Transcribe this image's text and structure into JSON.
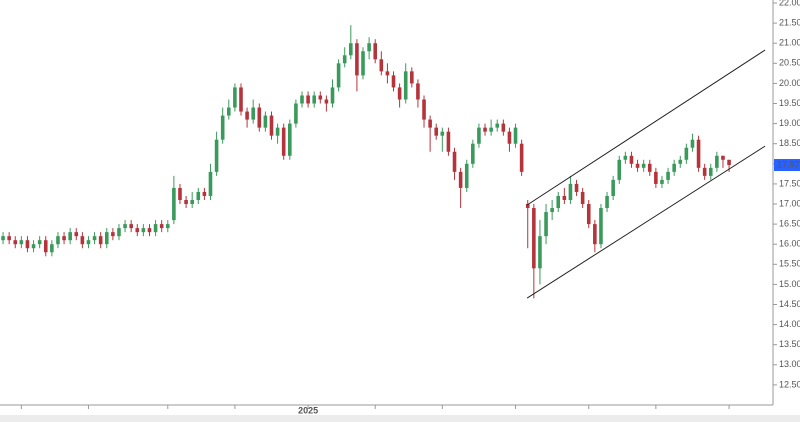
{
  "chart_data": {
    "type": "candlestick",
    "up_color": "#3a9a5b",
    "down_color": "#b5343c",
    "last_price_color": "#2962ff",
    "open": [
      16.1,
      16.2,
      16.1,
      16.0,
      16.1,
      15.9,
      16.0,
      16.1,
      15.8,
      16.0,
      16.2,
      16.1,
      16.3,
      16.2,
      16.0,
      16.1,
      16.2,
      16.0,
      16.3,
      16.2,
      16.4,
      16.5,
      16.4,
      16.3,
      16.4,
      16.3,
      16.5,
      16.4,
      16.6,
      17.4,
      17.1,
      17.0,
      17.1,
      17.3,
      17.2,
      17.8,
      18.6,
      19.2,
      19.4,
      19.9,
      19.3,
      19.1,
      19.4,
      18.9,
      19.2,
      18.7,
      18.9,
      18.2,
      19.0,
      19.5,
      19.7,
      19.5,
      19.7,
      19.6,
      19.5,
      19.9,
      20.5,
      20.7,
      21.0,
      20.2,
      20.8,
      21.0,
      20.6,
      20.3,
      20.2,
      19.9,
      19.6,
      20.3,
      20.0,
      19.6,
      19.1,
      18.9,
      18.7,
      18.8,
      18.3,
      17.8,
      17.4,
      18.0,
      18.5,
      18.9,
      18.8,
      18.9,
      19.0,
      18.8,
      18.5,
      18.5,
      17.0,
      16.9,
      15.4,
      16.2,
      16.8,
      16.9,
      17.2,
      17.1,
      17.5,
      17.3,
      17.0,
      16.5,
      16.0,
      16.9,
      17.2,
      17.6,
      18.1,
      18.2,
      18.0,
      17.9,
      18.0,
      17.8,
      17.5,
      17.6,
      17.8,
      18.0,
      18.1,
      18.4,
      18.6,
      17.9,
      17.7,
      17.9,
      18.2,
      18.1
    ],
    "high": [
      16.3,
      16.3,
      16.2,
      16.2,
      16.2,
      16.1,
      16.2,
      16.2,
      16.1,
      16.3,
      16.3,
      16.4,
      16.4,
      16.3,
      16.2,
      16.3,
      16.3,
      16.4,
      16.4,
      16.5,
      16.6,
      16.6,
      16.5,
      16.5,
      16.5,
      16.6,
      16.6,
      16.6,
      17.7,
      17.5,
      17.2,
      17.3,
      17.4,
      17.4,
      18.0,
      18.8,
      19.4,
      19.6,
      20.0,
      20.0,
      19.4,
      19.6,
      19.5,
      19.3,
      19.3,
      19.0,
      19.0,
      19.1,
      19.6,
      19.8,
      19.8,
      19.8,
      19.8,
      19.7,
      20.1,
      20.6,
      20.9,
      21.45,
      21.1,
      20.9,
      21.15,
      21.1,
      20.8,
      20.5,
      20.3,
      20.0,
      20.5,
      20.4,
      20.1,
      19.7,
      19.2,
      19.0,
      18.9,
      18.9,
      18.4,
      17.9,
      18.1,
      18.6,
      19.0,
      19.0,
      19.1,
      19.1,
      19.1,
      18.9,
      19.0,
      18.6,
      17.1,
      17.0,
      16.6,
      17.0,
      17.1,
      17.3,
      17.4,
      17.7,
      17.6,
      17.4,
      17.1,
      16.6,
      17.0,
      17.3,
      17.7,
      18.2,
      18.3,
      18.3,
      18.1,
      18.1,
      18.1,
      17.9,
      17.7,
      17.9,
      18.1,
      18.2,
      18.5,
      18.75,
      18.7,
      18.0,
      18.0,
      18.3,
      18.2,
      18.1
    ],
    "low": [
      16.0,
      16.0,
      15.9,
      15.9,
      15.8,
      15.8,
      15.9,
      15.7,
      15.7,
      15.9,
      16.0,
      16.0,
      16.1,
      15.9,
      15.9,
      16.0,
      15.9,
      15.9,
      16.1,
      16.1,
      16.3,
      16.3,
      16.2,
      16.2,
      16.2,
      16.2,
      16.3,
      16.3,
      16.5,
      17.0,
      16.9,
      16.9,
      17.0,
      17.1,
      17.1,
      17.7,
      18.5,
      19.1,
      19.3,
      19.2,
      18.9,
      19.0,
      18.8,
      18.8,
      18.6,
      18.5,
      18.1,
      18.1,
      18.9,
      19.4,
      19.4,
      19.4,
      19.5,
      19.3,
      19.4,
      19.8,
      20.4,
      20.6,
      19.8,
      20.1,
      20.6,
      20.5,
      20.2,
      20.0,
      19.8,
      19.4,
      19.5,
      19.9,
      19.4,
      18.9,
      18.3,
      18.6,
      18.3,
      18.2,
      17.6,
      16.9,
      17.3,
      17.9,
      18.4,
      18.7,
      18.7,
      18.8,
      18.7,
      18.3,
      18.4,
      17.7,
      15.9,
      14.65,
      15.0,
      16.0,
      16.6,
      16.8,
      17.0,
      17.0,
      17.2,
      16.9,
      16.4,
      15.8,
      15.9,
      16.8,
      17.1,
      17.5,
      18.0,
      17.9,
      17.8,
      17.8,
      17.7,
      17.4,
      17.4,
      17.5,
      17.7,
      17.9,
      18.0,
      18.3,
      17.8,
      17.6,
      17.6,
      17.8,
      17.9,
      17.8
    ],
    "close": [
      16.2,
      16.1,
      16.0,
      16.1,
      15.9,
      16.0,
      16.1,
      15.8,
      16.0,
      16.2,
      16.1,
      16.3,
      16.2,
      16.0,
      16.1,
      16.2,
      16.0,
      16.3,
      16.2,
      16.4,
      16.5,
      16.4,
      16.3,
      16.4,
      16.3,
      16.5,
      16.4,
      16.5,
      17.4,
      17.1,
      17.0,
      17.1,
      17.3,
      17.2,
      17.8,
      18.6,
      19.2,
      19.4,
      19.9,
      19.3,
      19.1,
      19.4,
      18.9,
      19.2,
      18.7,
      18.9,
      18.2,
      19.0,
      19.5,
      19.7,
      19.5,
      19.7,
      19.6,
      19.5,
      19.9,
      20.5,
      20.7,
      21.0,
      20.2,
      20.8,
      21.0,
      20.6,
      20.3,
      20.2,
      19.9,
      19.6,
      20.3,
      20.0,
      19.6,
      19.1,
      18.9,
      18.7,
      18.8,
      18.3,
      17.8,
      17.4,
      18.0,
      18.5,
      18.9,
      18.8,
      18.9,
      19.0,
      18.8,
      18.5,
      18.9,
      17.8,
      16.9,
      15.4,
      16.2,
      16.8,
      16.9,
      17.2,
      17.1,
      17.5,
      17.3,
      17.0,
      16.5,
      16.0,
      16.9,
      17.2,
      17.6,
      18.1,
      18.2,
      18.0,
      17.9,
      18.0,
      17.8,
      17.5,
      17.6,
      17.8,
      18.0,
      18.1,
      18.4,
      18.6,
      17.9,
      17.7,
      17.9,
      18.2,
      18.1,
      17.97
    ],
    "xlim": [
      -0.5,
      126.2
    ],
    "xticks": [
      {
        "value": 3,
        "label": null
      },
      {
        "value": 14,
        "label": null
      },
      {
        "value": 27,
        "label": null
      },
      {
        "value": 38,
        "label": null
      },
      {
        "value": 50,
        "label": "2025"
      },
      {
        "value": 61,
        "label": null
      },
      {
        "value": 72,
        "label": null
      },
      {
        "value": 84,
        "label": null
      },
      {
        "value": 96,
        "label": null
      },
      {
        "value": 107,
        "label": null
      },
      {
        "value": 119,
        "label": null
      }
    ],
    "ylim": [
      12,
      22.075
    ],
    "yticks": [
      {
        "value": 12.5,
        "label": "12.50"
      },
      {
        "value": 13,
        "label": "13.00"
      },
      {
        "value": 13.5,
        "label": "13.50"
      },
      {
        "value": 14,
        "label": "14.00"
      },
      {
        "value": 14.5,
        "label": "14.50"
      },
      {
        "value": 15,
        "label": "15.00"
      },
      {
        "value": 15.5,
        "label": "15.50"
      },
      {
        "value": 16,
        "label": "16.00"
      },
      {
        "value": 16.5,
        "label": "16.50"
      },
      {
        "value": 17,
        "label": "17.00"
      },
      {
        "value": 17.5,
        "label": "17.50"
      },
      {
        "value": 18,
        "label": "18.00"
      },
      {
        "value": 18.5,
        "label": "18.50"
      },
      {
        "value": 19,
        "label": "19.00"
      },
      {
        "value": 19.5,
        "label": "19.50"
      },
      {
        "value": 20,
        "label": "20.00"
      },
      {
        "value": 20.5,
        "label": "20.50"
      },
      {
        "value": 21,
        "label": "21.00"
      },
      {
        "value": 21.5,
        "label": "21.50"
      },
      {
        "value": 22,
        "label": "22.00"
      }
    ],
    "trendlines": [
      {
        "x": [
          85.9,
          124.9
        ],
        "y": [
          16.975,
          20.83
        ]
      },
      {
        "x": [
          85.9,
          124.9
        ],
        "y": [
          14.66,
          18.44
        ]
      }
    ]
  }
}
